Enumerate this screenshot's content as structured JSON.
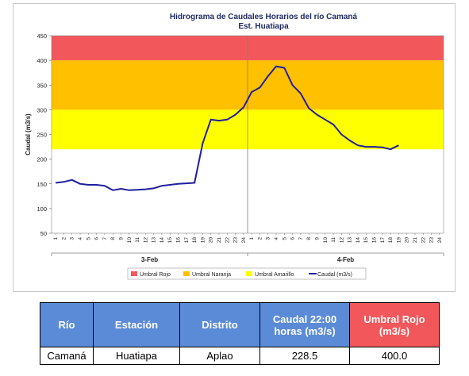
{
  "chart_data": {
    "type": "line",
    "title": "Hidrograma de Caudales Horarios del río Camaná",
    "subtitle": "Est. Huatiapa",
    "ylabel": "Caudal  (m3/s)",
    "ylim": [
      50,
      450
    ],
    "yticks": [
      50,
      100,
      150,
      200,
      250,
      300,
      350,
      400,
      450
    ],
    "x_tick_labels": [
      "1",
      "2",
      "3",
      "4",
      "5",
      "6",
      "7",
      "8",
      "9",
      "10",
      "11",
      "12",
      "13",
      "14",
      "15",
      "16",
      "17",
      "18",
      "19",
      "20",
      "21",
      "22",
      "23",
      "24",
      "1",
      "2",
      "3",
      "4",
      "5",
      "6",
      "7",
      "8",
      "9",
      "10",
      "11",
      "12",
      "13",
      "14",
      "15",
      "16",
      "17",
      "18",
      "19",
      "20",
      "21",
      "22",
      "23",
      "24"
    ],
    "day_labels": [
      "3-Feb",
      "4-Feb"
    ],
    "bands": [
      {
        "name": "Umbral Rojo",
        "from": 400,
        "to": 450,
        "color": "#f2585b"
      },
      {
        "name": "Umbral Naranja",
        "from": 300,
        "to": 400,
        "color": "#ffc000"
      },
      {
        "name": "Umbral Amarillo",
        "from": 220,
        "to": 300,
        "color": "#ffff00"
      }
    ],
    "series": [
      {
        "name": "Caudal (m3/s)",
        "color": "#1f1fa0",
        "values": [
          152,
          154,
          158,
          150,
          148,
          148,
          146,
          137,
          140,
          137,
          138,
          139,
          141,
          146,
          148,
          150,
          151,
          152,
          232,
          280,
          278,
          280,
          290,
          305,
          336,
          345,
          368,
          388,
          385,
          350,
          333,
          303,
          290,
          280,
          270,
          250,
          238,
          228,
          225,
          225,
          224,
          220,
          228
        ]
      }
    ],
    "legend": [
      "Umbral Rojo",
      "Umbral Naranja",
      "Umbral Amarillo",
      "Caudal (m3/s)"
    ],
    "legend_position": "bottom"
  },
  "table": {
    "headers": [
      "Río",
      "Estación",
      "Distrito",
      "Caudal 22:00 horas (m3/s)",
      "Umbral  Rojo (m3/s)"
    ],
    "row": [
      "Camaná",
      "Huatiapa",
      "Aplao",
      "228.5",
      "400.0"
    ]
  }
}
